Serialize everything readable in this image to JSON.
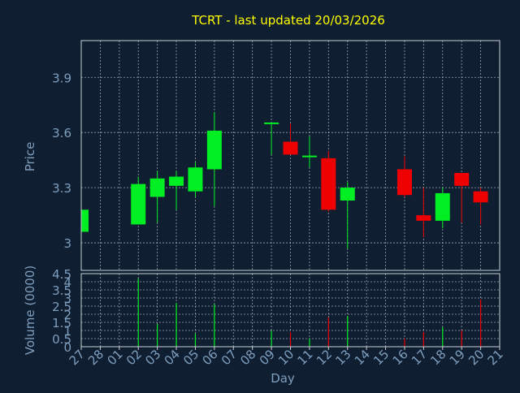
{
  "chart_data": {
    "type": "candlestick",
    "title": "TCRT - last updated 20/03/2026",
    "xlabel": "Day",
    "ylabel": "Price",
    "volume_label": "Volume (0000)",
    "ylim": [
      2.85,
      4.1
    ],
    "yticks": [
      {
        "value": 3,
        "label": "3"
      },
      {
        "value": 3.3,
        "label": "3.3"
      },
      {
        "value": 3.6,
        "label": "3.6"
      },
      {
        "value": 3.9,
        "label": "3.9"
      }
    ],
    "volume_ylim": [
      0,
      4.5
    ],
    "volume_ticks": [
      {
        "value": 0,
        "label": "0"
      },
      {
        "value": 0.5,
        "label": "0.5"
      },
      {
        "value": 1,
        "label": "1"
      },
      {
        "value": 1.5,
        "label": "1.5"
      },
      {
        "value": 2,
        "label": "2"
      },
      {
        "value": 2.5,
        "label": "2.5"
      },
      {
        "value": 3,
        "label": "3"
      },
      {
        "value": 3.5,
        "label": "3.5"
      },
      {
        "value": 4,
        "label": "4"
      },
      {
        "value": 4.5,
        "label": "4.5"
      }
    ],
    "x_ticks": [
      "27",
      "28",
      "01",
      "02",
      "03",
      "04",
      "05",
      "06",
      "07",
      "08",
      "09",
      "10",
      "11",
      "12",
      "13",
      "14",
      "15",
      "16",
      "17",
      "18",
      "19",
      "20",
      "21"
    ],
    "grid": true,
    "colors": {
      "background": "#0f1e30",
      "up": "#00ee22",
      "down": "#ee0000",
      "text": "#7f9fbf",
      "title": "#ffff00",
      "grid": "#c8d0d8"
    },
    "candles": [
      {
        "day": "27",
        "open": 3.06,
        "high": 3.18,
        "low": 3.06,
        "close": 3.18
      },
      {
        "day": "02",
        "open": 3.1,
        "high": 3.36,
        "low": 3.1,
        "close": 3.32
      },
      {
        "day": "03",
        "open": 3.25,
        "high": 3.39,
        "low": 3.11,
        "close": 3.35
      },
      {
        "day": "04",
        "open": 3.31,
        "high": 3.39,
        "low": 3.18,
        "close": 3.36
      },
      {
        "day": "05",
        "open": 3.28,
        "high": 3.44,
        "low": 3.25,
        "close": 3.41
      },
      {
        "day": "06",
        "open": 3.4,
        "high": 3.71,
        "low": 3.2,
        "close": 3.61
      },
      {
        "day": "09",
        "open": 3.65,
        "high": 3.65,
        "low": 3.48,
        "close": 3.65
      },
      {
        "day": "10",
        "open": 3.55,
        "high": 3.65,
        "low": 3.48,
        "close": 3.48
      },
      {
        "day": "11",
        "open": 3.47,
        "high": 3.58,
        "low": 3.41,
        "close": 3.47
      },
      {
        "day": "12",
        "open": 3.46,
        "high": 3.5,
        "low": 3.17,
        "close": 3.18
      },
      {
        "day": "13",
        "open": 3.23,
        "high": 3.33,
        "low": 2.97,
        "close": 3.3
      },
      {
        "day": "16",
        "open": 3.4,
        "high": 3.47,
        "low": 3.25,
        "close": 3.26
      },
      {
        "day": "17",
        "open": 3.15,
        "high": 3.3,
        "low": 3.03,
        "close": 3.12
      },
      {
        "day": "18",
        "open": 3.12,
        "high": 3.3,
        "low": 3.08,
        "close": 3.27
      },
      {
        "day": "19",
        "open": 3.38,
        "high": 3.38,
        "low": 3.11,
        "close": 3.31
      },
      {
        "day": "20",
        "open": 3.28,
        "high": 3.3,
        "low": 3.1,
        "close": 3.22
      }
    ],
    "volume": [
      {
        "day": "27",
        "value": 0.1,
        "dir": "up"
      },
      {
        "day": "02",
        "value": 4.2,
        "dir": "up"
      },
      {
        "day": "03",
        "value": 1.4,
        "dir": "up"
      },
      {
        "day": "04",
        "value": 2.7,
        "dir": "up"
      },
      {
        "day": "05",
        "value": 0.8,
        "dir": "up"
      },
      {
        "day": "06",
        "value": 2.6,
        "dir": "up"
      },
      {
        "day": "09",
        "value": 1.0,
        "dir": "up"
      },
      {
        "day": "10",
        "value": 0.9,
        "dir": "down"
      },
      {
        "day": "11",
        "value": 0.5,
        "dir": "up"
      },
      {
        "day": "12",
        "value": 1.8,
        "dir": "down"
      },
      {
        "day": "13",
        "value": 1.9,
        "dir": "up"
      },
      {
        "day": "16",
        "value": 0.5,
        "dir": "down"
      },
      {
        "day": "17",
        "value": 0.9,
        "dir": "down"
      },
      {
        "day": "18",
        "value": 1.2,
        "dir": "up"
      },
      {
        "day": "19",
        "value": 1.0,
        "dir": "down"
      },
      {
        "day": "20",
        "value": 2.9,
        "dir": "down"
      }
    ]
  }
}
